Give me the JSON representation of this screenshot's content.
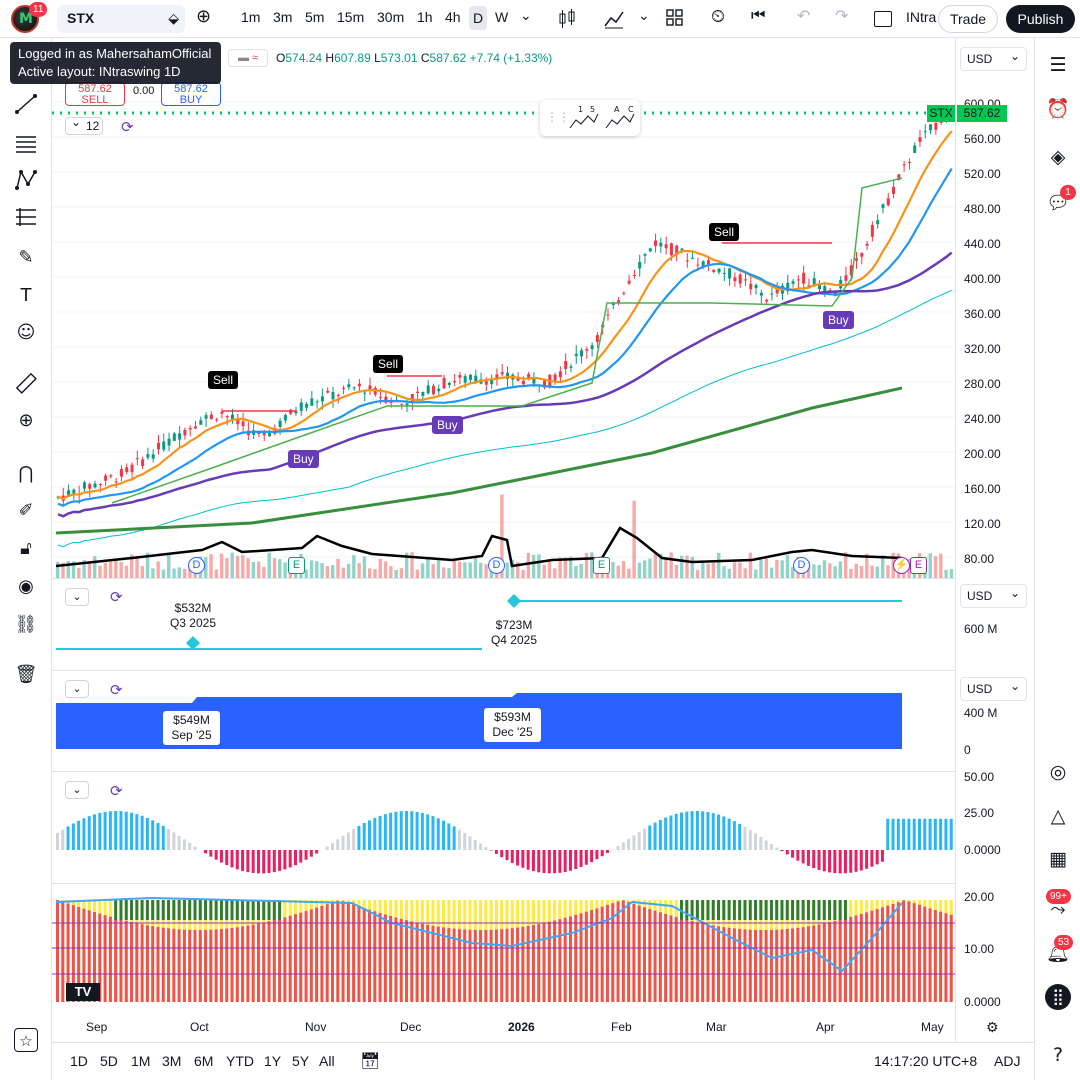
{
  "topbar": {
    "notif_count": "11",
    "symbol": "STX",
    "timeframes": [
      "1m",
      "3m",
      "5m",
      "15m",
      "30m",
      "1h",
      "4h",
      "D",
      "W"
    ],
    "active_timeframe": "D",
    "layout_name": "INtra",
    "trade_label": "Trade",
    "publish_label": "Publish"
  },
  "tooltip": {
    "line1": "Logged in as MahersahamOfficial",
    "line2": "Active layout: INtraswing 1D"
  },
  "legend": {
    "open_label": "O",
    "open": "574.24",
    "high_label": "H",
    "high": "607.89",
    "low_label": "L",
    "low": "573.01",
    "close_label": "C",
    "close": "587.62",
    "change": "+7.74 (+1.33%)",
    "sell_price": "587.62",
    "sell_label": "SELL",
    "spread": "0.00",
    "buy_price": "587.62",
    "buy_label": "BUY",
    "interval_value": "12"
  },
  "price_label": {
    "symbol": "STX",
    "price": "587.62"
  },
  "currency": "USD",
  "price_axis": [
    "600.00",
    "560.00",
    "520.00",
    "480.00",
    "440.00",
    "400.00",
    "360.00",
    "320.00",
    "280.00",
    "240.00",
    "200.00",
    "160.00",
    "120.00",
    "80.00"
  ],
  "signals": [
    {
      "type": "sell",
      "label": "Sell"
    },
    {
      "type": "buy",
      "label": "Buy"
    },
    {
      "type": "sell",
      "label": "Sell"
    },
    {
      "type": "buy",
      "label": "Buy"
    },
    {
      "type": "sell",
      "label": "Sell"
    },
    {
      "type": "buy",
      "label": "Buy"
    }
  ],
  "events": [
    "D",
    "E",
    "D",
    "E",
    "D"
  ],
  "pane2": {
    "currency": "USD",
    "axis": [
      "600 M"
    ],
    "q3_value": "$532M",
    "q3_label": "Q3 2025",
    "q4_value": "$723M",
    "q4_label": "Q4 2025"
  },
  "pane3": {
    "currency": "USD",
    "axis": [
      "400 M",
      "0"
    ],
    "sep_value": "$549M",
    "sep_label": "Sep '25",
    "dec_value": "$593M",
    "dec_label": "Dec '25"
  },
  "pane4": {
    "axis": [
      "50.00",
      "25.00",
      "0.0000"
    ]
  },
  "pane5": {
    "axis": [
      "20.00",
      "10.00",
      "0.0000"
    ]
  },
  "time_axis": [
    "Sep",
    "Oct",
    "Nov",
    "Dec",
    "2026",
    "Feb",
    "Mar",
    "Apr",
    "May"
  ],
  "bottombar": {
    "ranges": [
      "1D",
      "5D",
      "1M",
      "3M",
      "6M",
      "YTD",
      "1Y",
      "5Y",
      "All"
    ],
    "clock": "14:17:20 UTC+8",
    "adj": "ADJ"
  },
  "righttb": {
    "chat_badge": "1",
    "stream_badge": "99+",
    "alert_badge": "53"
  },
  "colors": {
    "up": "#089981",
    "down": "#f23645",
    "accent": "#2962ff",
    "signal_buy": "#673ab7"
  }
}
